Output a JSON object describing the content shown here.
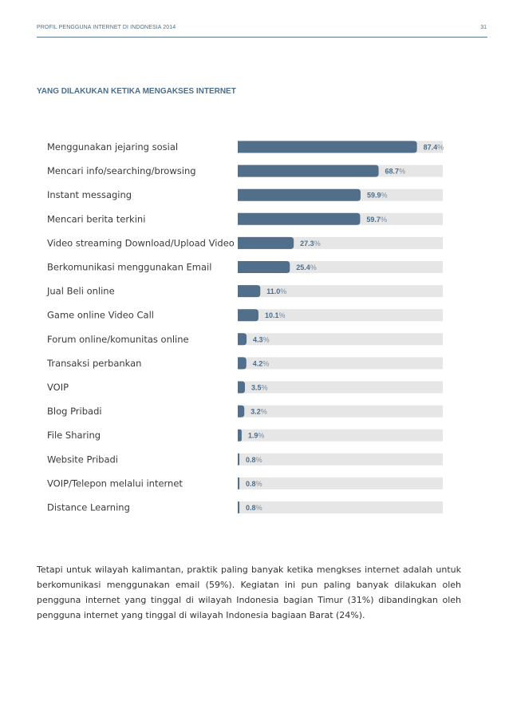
{
  "header": {
    "title": "PROFIL PENGGUNA INTERNET DI INDONESIA 2014",
    "page_number": "31"
  },
  "section_title": "YANG DILAKUKAN KETIKA MENGAKSES INTERNET",
  "colors": {
    "bar": "#516e8a",
    "track": "#e6e6e6",
    "accent": "#4a6e8c"
  },
  "chart_data": {
    "type": "bar",
    "orientation": "horizontal",
    "categories": [
      "Menggunakan jejaring sosial",
      "Mencari info/searching/browsing",
      "Instant messaging",
      "Mencari berita terkini",
      "Video streaming Download/Upload Video",
      "Berkomunikasi menggunakan Email",
      "Jual Beli online",
      "Game online Video Call",
      "Forum online/komunitas online",
      "Transaksi perbankan",
      "VOIP",
      "Blog Pribadi",
      "File Sharing",
      "Website Pribadi",
      "VOIP/Telepon melalui internet",
      "Distance Learning"
    ],
    "values": [
      87.4,
      68.7,
      59.9,
      59.7,
      27.3,
      25.4,
      11.0,
      10.1,
      4.3,
      4.2,
      3.5,
      3.2,
      1.9,
      0.8,
      0.8,
      0.8
    ],
    "value_labels": [
      "87.4",
      "68.7",
      "59.9",
      "59.7",
      "27.3",
      "25.4",
      "11.0",
      "10.1",
      "4.3",
      "4.2",
      "3.5",
      "3.2",
      "1.9",
      "0.8",
      "0.8",
      "0.8"
    ],
    "unit": "%",
    "xlim": [
      0,
      100
    ],
    "grid": false,
    "legend": "none"
  },
  "paragraph": "Tetapi untuk wilayah kalimantan, praktik paling banyak ketika mengkses internet adalah untuk berkomunikasi menggunakan email (59%). Kegiatan ini pun paling banyak dilakukan oleh pengguna internet yang tinggal di wilayah Indonesia bagian Timur (31%) dibandingkan oleh pengguna internet yang tinggal di wilayah Indonesia bagiaan Barat (24%)."
}
